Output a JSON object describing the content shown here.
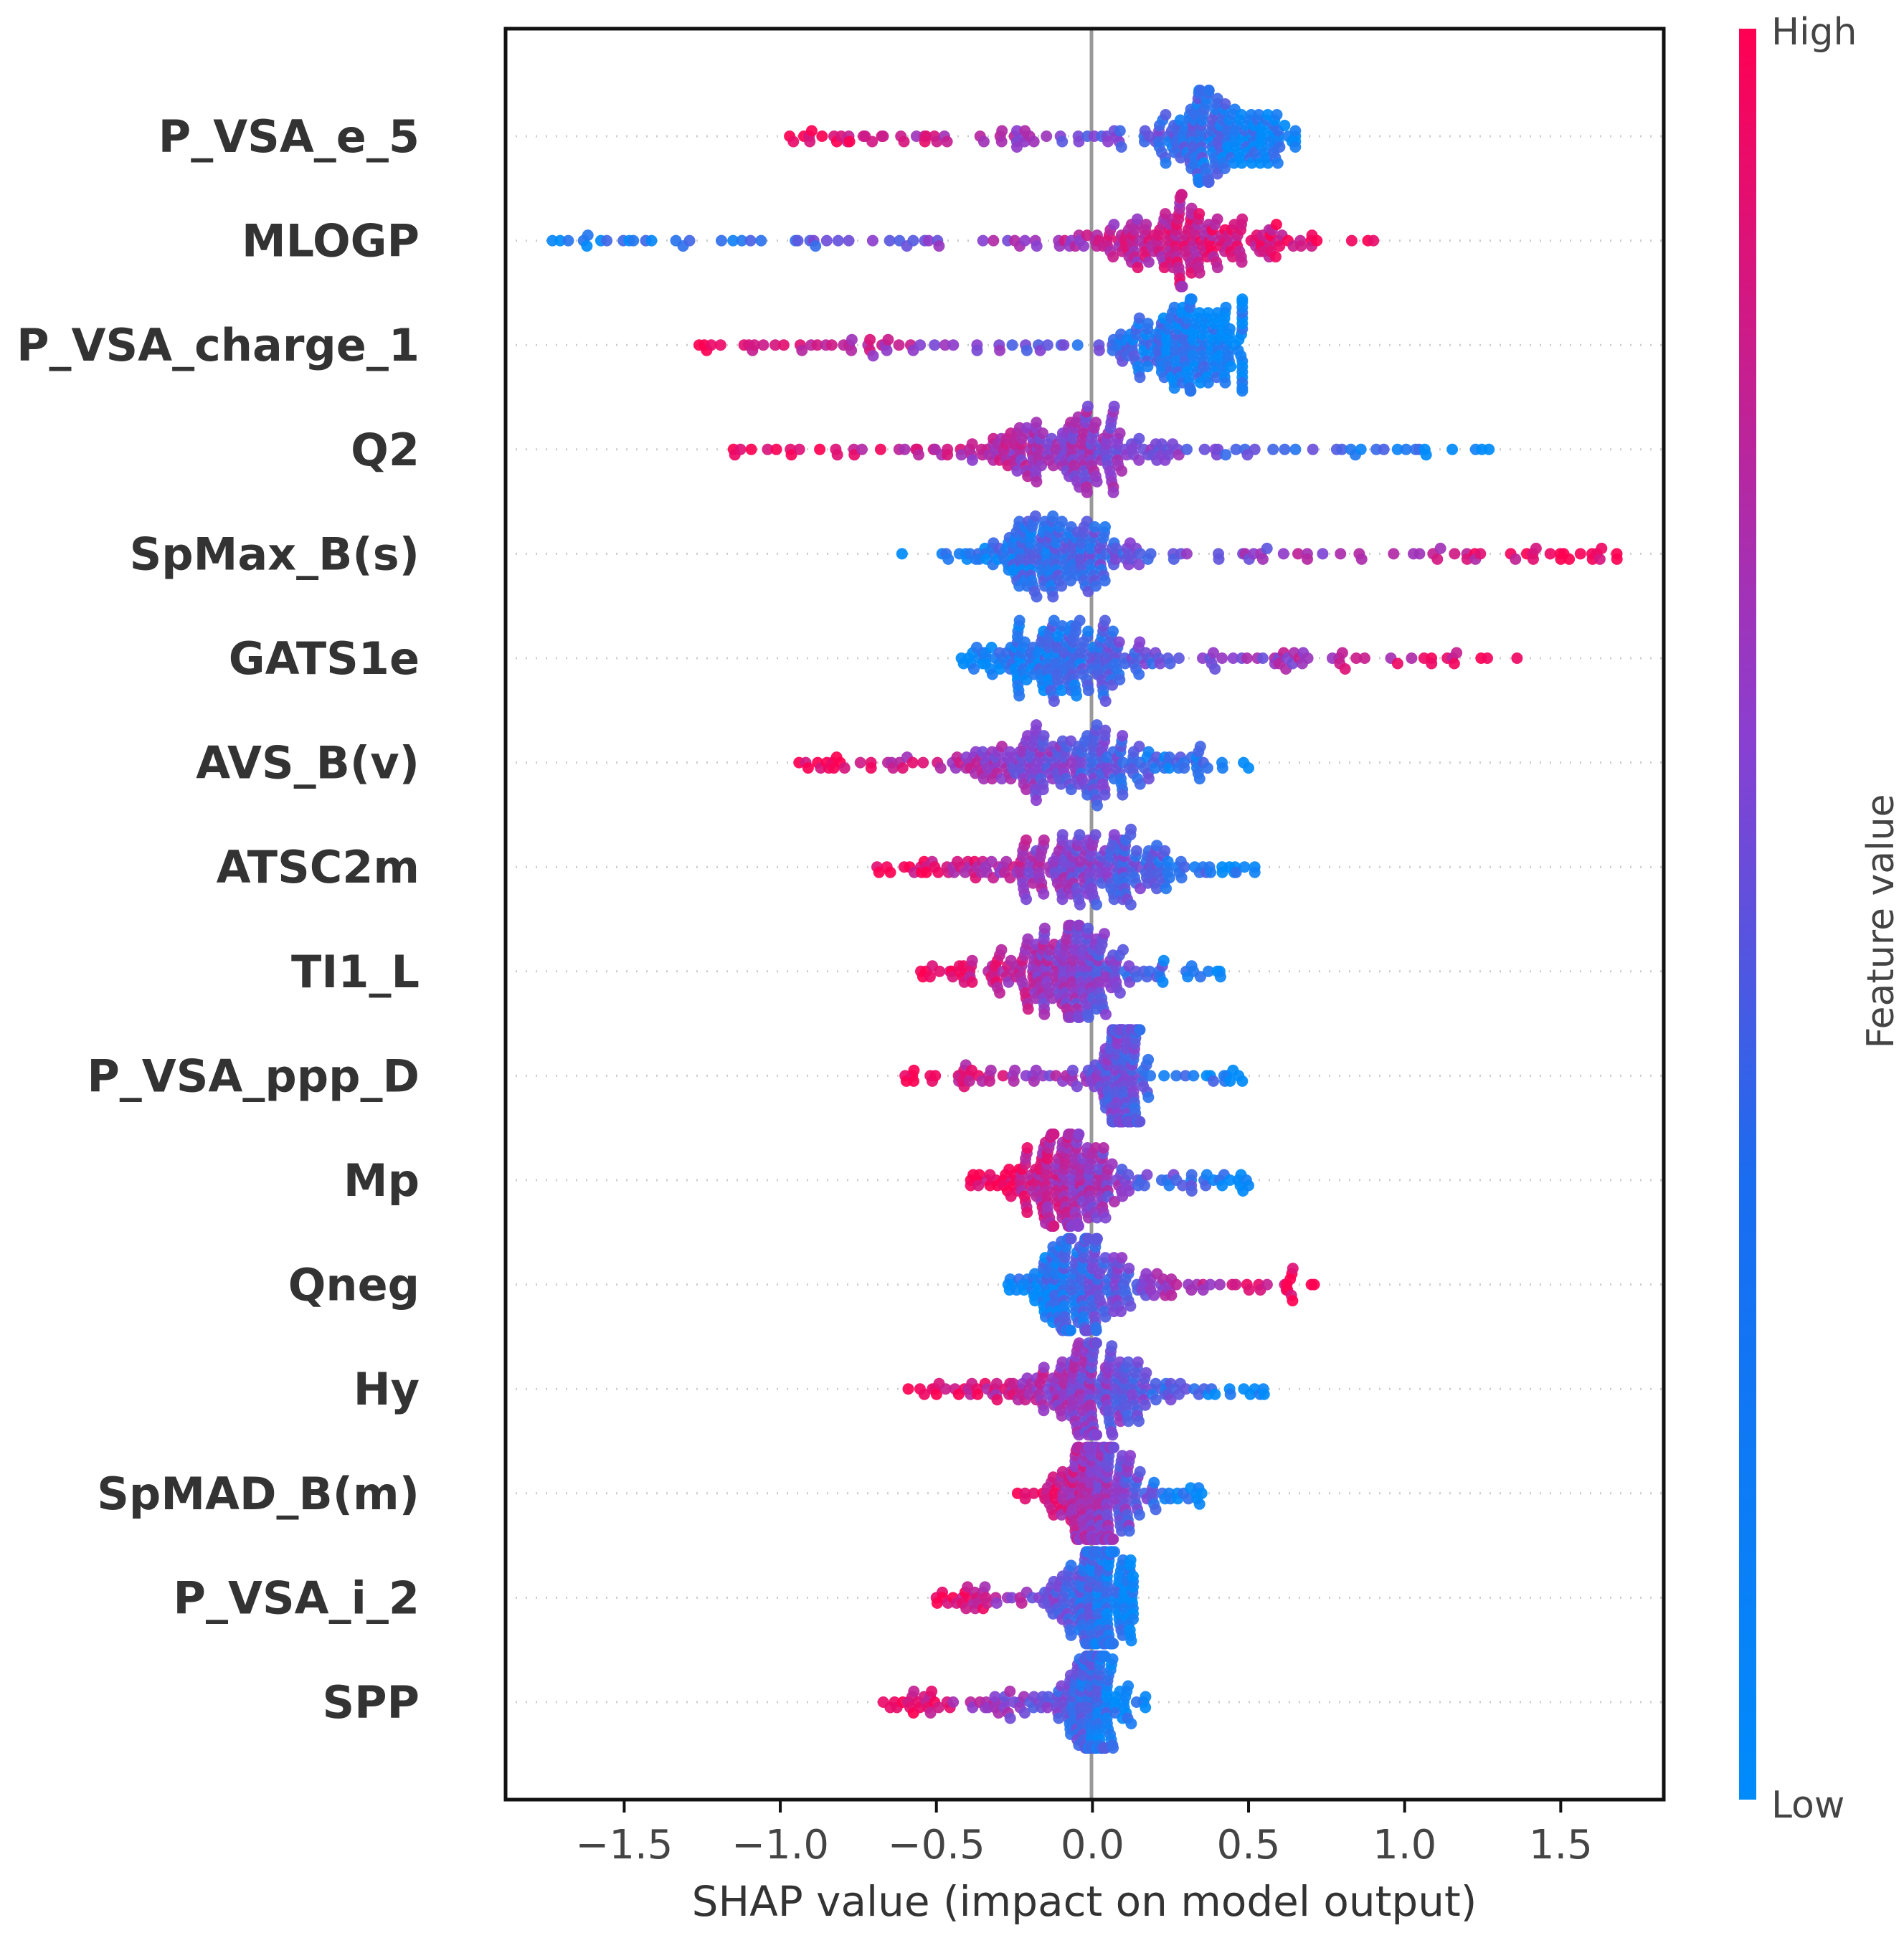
{
  "chart_data": {
    "type": "scatter",
    "subtype": "shap-beeswarm",
    "xlabel": "SHAP value (impact on model output)",
    "xlim": [
      -1.88,
      1.83
    ],
    "xticks": [
      -1.5,
      -1.0,
      -0.5,
      0.0,
      0.5,
      1.0,
      1.5
    ],
    "xtick_labels": [
      "−1.5",
      "−1.0",
      "−0.5",
      "0.0",
      "0.5",
      "1.0",
      "1.5"
    ],
    "colorbar": {
      "label": "Feature value",
      "high": "High",
      "low": "Low"
    },
    "colors": {
      "high": "#ff0052",
      "low": "#008bfb",
      "zero_line": "#999999"
    },
    "features": [
      {
        "name": "P_VSA_e_5",
        "min": -0.97,
        "max": 0.65,
        "center": 0.42,
        "spread": 0.22,
        "direction": -1
      },
      {
        "name": "MLOGP",
        "min": -1.73,
        "max": 0.9,
        "center": 0.28,
        "spread": 0.3,
        "direction": 1
      },
      {
        "name": "P_VSA_charge_1",
        "min": -1.26,
        "max": 0.48,
        "center": 0.3,
        "spread": 0.22,
        "direction": -1
      },
      {
        "name": "Q2",
        "min": -1.15,
        "max": 1.27,
        "center": -0.12,
        "spread": 0.3,
        "direction": -1
      },
      {
        "name": "SpMax_B(s)",
        "min": -0.61,
        "max": 1.68,
        "center": -0.12,
        "spread": 0.25,
        "direction": 1
      },
      {
        "name": "GATS1e",
        "min": -0.42,
        "max": 1.36,
        "center": -0.1,
        "spread": 0.25,
        "direction": 1
      },
      {
        "name": "AVS_B(v)",
        "min": -0.94,
        "max": 0.5,
        "center": -0.1,
        "spread": 0.3,
        "direction": -1
      },
      {
        "name": "ATSC2m",
        "min": -0.69,
        "max": 0.52,
        "center": 0.0,
        "spread": 0.28,
        "direction": -1
      },
      {
        "name": "TI1_L",
        "min": -0.55,
        "max": 0.41,
        "center": -0.1,
        "spread": 0.2,
        "direction": -1
      },
      {
        "name": "P_VSA_ppp_D",
        "min": -0.6,
        "max": 0.48,
        "center": 0.1,
        "spread": 0.06,
        "direction": -1
      },
      {
        "name": "Mp",
        "min": -0.39,
        "max": 0.5,
        "center": -0.1,
        "spread": 0.18,
        "direction": -1
      },
      {
        "name": "Qneg",
        "min": -0.27,
        "max": 0.71,
        "center": -0.05,
        "spread": 0.18,
        "direction": 1
      },
      {
        "name": "Hy",
        "min": -0.59,
        "max": 0.55,
        "center": 0.0,
        "spread": 0.2,
        "direction": -1
      },
      {
        "name": "SpMAD_B(m)",
        "min": -0.24,
        "max": 0.35,
        "center": 0.0,
        "spread": 0.1,
        "direction": -1
      },
      {
        "name": "P_VSA_i_2",
        "min": -0.5,
        "max": 0.13,
        "center": 0.02,
        "spread": 0.1,
        "direction": -1
      },
      {
        "name": "SPP",
        "min": -0.67,
        "max": 0.17,
        "center": 0.0,
        "spread": 0.08,
        "direction": -1
      }
    ]
  }
}
